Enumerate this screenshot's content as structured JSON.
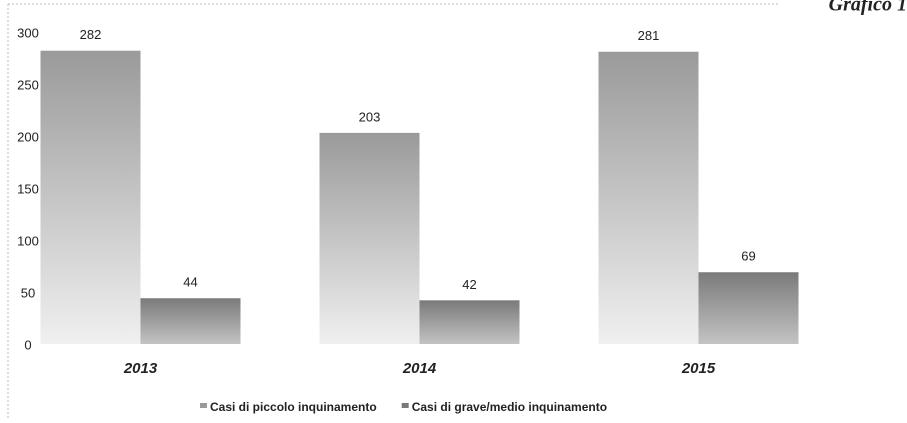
{
  "chart_data": {
    "type": "bar",
    "title": "Grafico 1",
    "categories": [
      "2013",
      "2014",
      "2015"
    ],
    "series": [
      {
        "name": "Casi di piccolo inquinamento",
        "color": "#9a9a9a",
        "values": [
          282,
          203,
          281
        ]
      },
      {
        "name": "Casi di grave/medio inquinamento",
        "color": "#7a7a7a",
        "values": [
          44,
          42,
          69
        ]
      }
    ],
    "ylim": [
      0,
      300
    ],
    "yticks": [
      0,
      50,
      100,
      150,
      200,
      250,
      300
    ],
    "grid": false,
    "legend": "bottom"
  }
}
